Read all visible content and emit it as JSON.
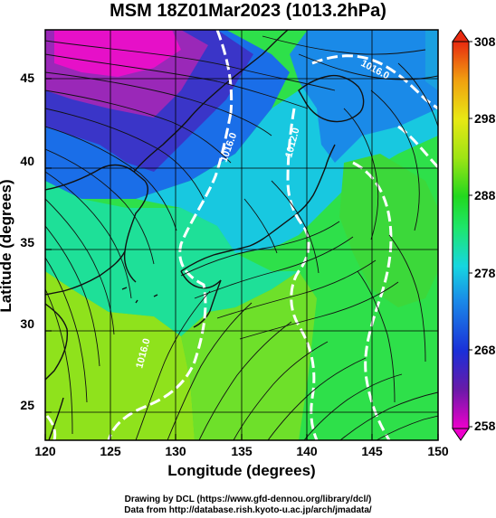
{
  "title": "MSM 18Z01Mar2023 (1013.2hPa)",
  "x_axis": {
    "label": "Longitude (degrees)",
    "ticks": [
      "120",
      "125",
      "130",
      "135",
      "140",
      "145",
      "150"
    ],
    "range": [
      120,
      150
    ]
  },
  "y_axis": {
    "label": "Latitude  (degrees)",
    "ticks": [
      "25",
      "30",
      "35",
      "40",
      "45"
    ],
    "range": [
      22.4,
      47.6
    ]
  },
  "colorbar": {
    "ticks": [
      "308",
      "298",
      "288",
      "278",
      "268",
      "258"
    ],
    "range": [
      258,
      308
    ],
    "colors": [
      "#ee00cc",
      "#6a1aa8",
      "#1a2fd8",
      "#1a8ae8",
      "#16d6e0",
      "#1ee66a",
      "#22d81e",
      "#9ee414",
      "#e8e814",
      "#f0a010",
      "#e82a10"
    ]
  },
  "contour_labels": [
    "1016.0",
    "1016.0",
    "1012.0",
    "1016.0"
  ],
  "credits": {
    "line1": "Drawing by DCL (https://www.gfd-dennou.org/library/dcl/)",
    "line2": "Data from http://database.rish.kyoto-u.ac.jp/arch/jmadata/"
  }
}
